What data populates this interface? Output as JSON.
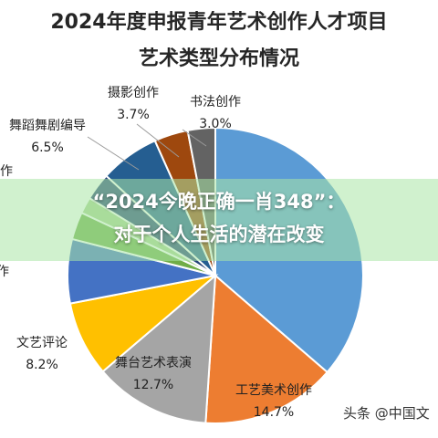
{
  "chart_data": {
    "type": "pie",
    "title": "2024年度申报青年艺术创作人才项目",
    "subtitle": "艺术类型分布情况",
    "slices": [
      {
        "label": "书法创作",
        "value": 3.0,
        "value_label": "3.0%",
        "color": "#5b9bd5"
      },
      {
        "label": "",
        "value": 36.3,
        "value_label": "",
        "color": "#5b9bd5"
      },
      {
        "label": "工艺美术创作",
        "value": 14.7,
        "value_label": "14.7%",
        "color": "#ed7d31"
      },
      {
        "label": "舞台艺术表演",
        "value": 12.7,
        "value_label": "12.7%",
        "color": "#a5a5a5"
      },
      {
        "label": "文艺评论",
        "value": 8.2,
        "value_label": "8.2%",
        "color": "#ffc000"
      },
      {
        "label": "",
        "value": 7.0,
        "value_label": "",
        "color": "#4472c4"
      },
      {
        "label": "",
        "value": 3.0,
        "value_label": "",
        "color": "#70ad47"
      },
      {
        "label": "",
        "value": 1.8,
        "value_label": "",
        "color": "#a9d18e"
      },
      {
        "label": "",
        "value": 3.0,
        "value_label": "",
        "color": "#264478"
      },
      {
        "label": "舞蹈舞剧编导",
        "value": 6.5,
        "value_label": "6.5%",
        "color": "#255e91"
      },
      {
        "label": "摄影创作",
        "value": 3.7,
        "value_label": "3.7%",
        "color": "#9e480e"
      },
      {
        "label": "书法创作",
        "value": 3.0,
        "value_label": "3.0%",
        "color": "#636363"
      }
    ],
    "cut_labels": [
      {
        "text": "作"
      },
      {
        "text": "作"
      }
    ]
  },
  "overlay": {
    "line1": "“2024今晚正确一肖348”：",
    "line2": "对于个人生活的潜在改变"
  },
  "watermark": "头条 @中国文"
}
